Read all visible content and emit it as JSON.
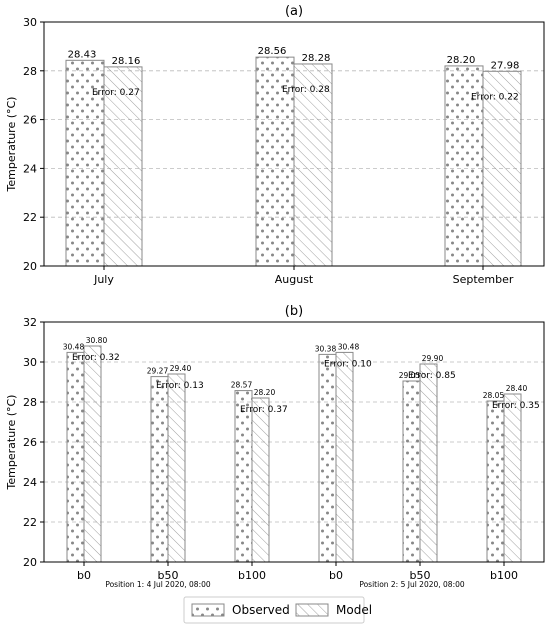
{
  "chart_data": [
    {
      "type": "bar",
      "title": "(a)",
      "ylabel": "Temperature (°C)",
      "ylim": [
        20,
        30
      ],
      "yticks": [
        20,
        22,
        24,
        26,
        28,
        30
      ],
      "grid": true,
      "categories": [
        "July",
        "August",
        "September"
      ],
      "series": [
        {
          "name": "Observed",
          "values": [
            28.43,
            28.56,
            28.2
          ],
          "labels": [
            "28.43",
            "28.56",
            "28.20"
          ]
        },
        {
          "name": "Model",
          "values": [
            28.16,
            28.28,
            27.98
          ],
          "labels": [
            "28.16",
            "28.28",
            "27.98"
          ]
        }
      ],
      "errors": [
        "Error: 0.27",
        "Error: 0.28",
        "Error: 0.22"
      ]
    },
    {
      "type": "bar",
      "title": "(b)",
      "ylabel": "Temperature (°C)",
      "ylim": [
        20,
        32
      ],
      "yticks": [
        20,
        22,
        24,
        26,
        28,
        30,
        32
      ],
      "grid": true,
      "categories": [
        "b0",
        "b50",
        "b100",
        "b0",
        "b50",
        "b100"
      ],
      "series": [
        {
          "name": "Observed",
          "values": [
            30.48,
            29.27,
            28.57,
            30.38,
            29.05,
            28.05
          ],
          "labels": [
            "30.48",
            "29.27",
            "28.57",
            "30.38",
            "29.05",
            "28.05"
          ]
        },
        {
          "name": "Model",
          "values": [
            30.8,
            29.4,
            28.2,
            30.48,
            29.9,
            28.4
          ],
          "labels": [
            "30.80",
            "29.40",
            "28.20",
            "30.48",
            "29.90",
            "28.40"
          ]
        }
      ],
      "errors": [
        "Error: 0.32",
        "Error: 0.13",
        "Error: 0.37",
        "Error: 0.10",
        "Error: 0.85",
        "Error: 0.35"
      ],
      "group_labels": [
        "Position 1: 4 Jul 2020, 08:00",
        "Position 2: 5 Jul 2020, 08:00"
      ]
    }
  ],
  "legend": {
    "placement": "bottom-center",
    "items": [
      {
        "label": "Observed",
        "pattern": "dots"
      },
      {
        "label": "Model",
        "pattern": "hatch"
      }
    ]
  }
}
